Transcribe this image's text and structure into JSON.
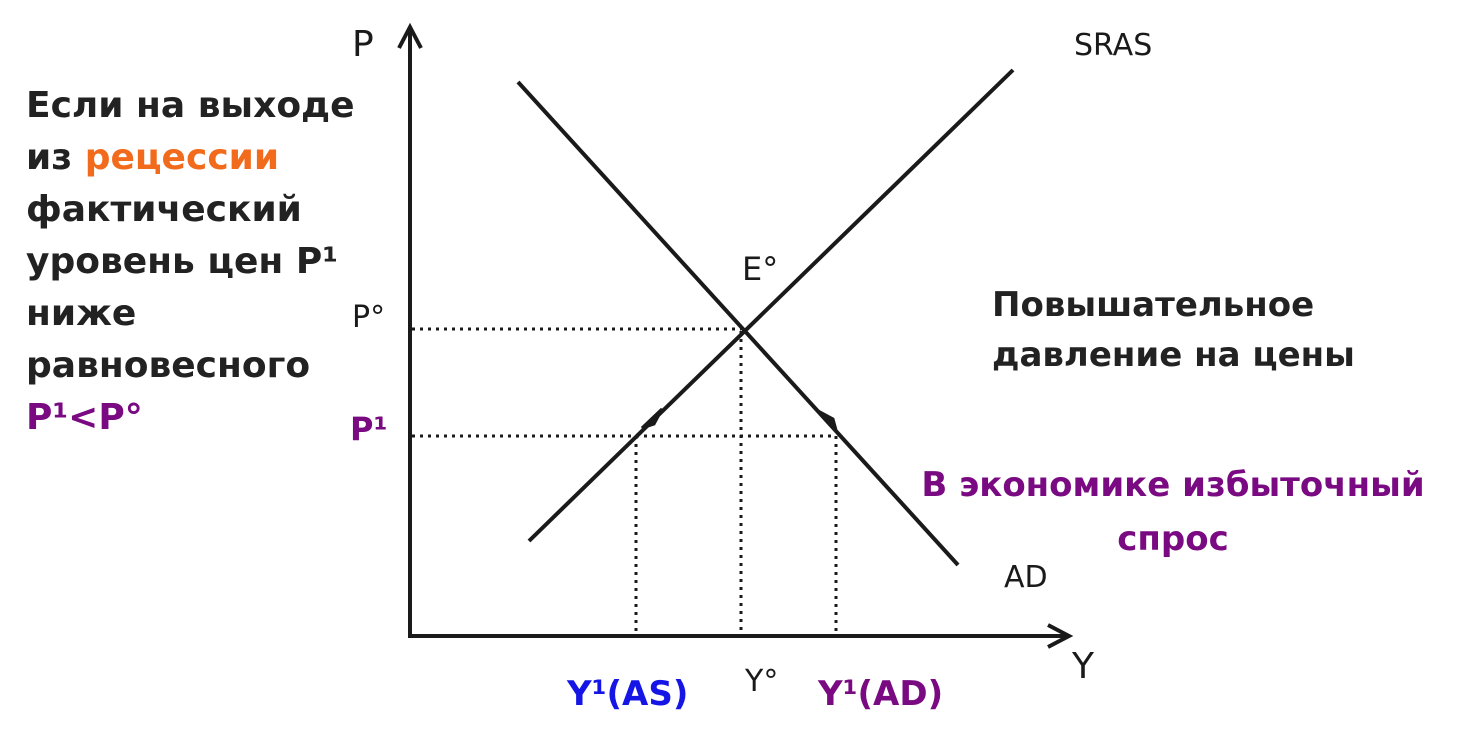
{
  "axes": {
    "y_label": "P",
    "x_label": "Y"
  },
  "curves": {
    "sras_label": "SRAS",
    "ad_label": "AD",
    "equilibrium_label": "E°"
  },
  "price_levels": {
    "p0_label": "P°",
    "p1_label": "P¹"
  },
  "output_levels": {
    "y1_as_label": "Y¹(AS)",
    "y0_label": "Y°",
    "y1_ad_label": "Y¹(AD)"
  },
  "left_note": {
    "line1": "Если на выходе",
    "line2_prefix": "из ",
    "line2_highlight": "рецессии",
    "line3": "фактический",
    "line4": "уровень цен P¹",
    "line5": "ниже",
    "line6": "равновесного",
    "line7": "P¹<P°"
  },
  "right_note": {
    "line1": "Повышательное",
    "line2": "давление на цены"
  },
  "excess_demand_note": {
    "line1": "В экономике избыточный",
    "line2": "спрос"
  },
  "colors": {
    "ink": "#1a1a1a",
    "highlight_orange": "#f26b1d",
    "purple": "#7a0a82",
    "blue": "#1515e6"
  }
}
